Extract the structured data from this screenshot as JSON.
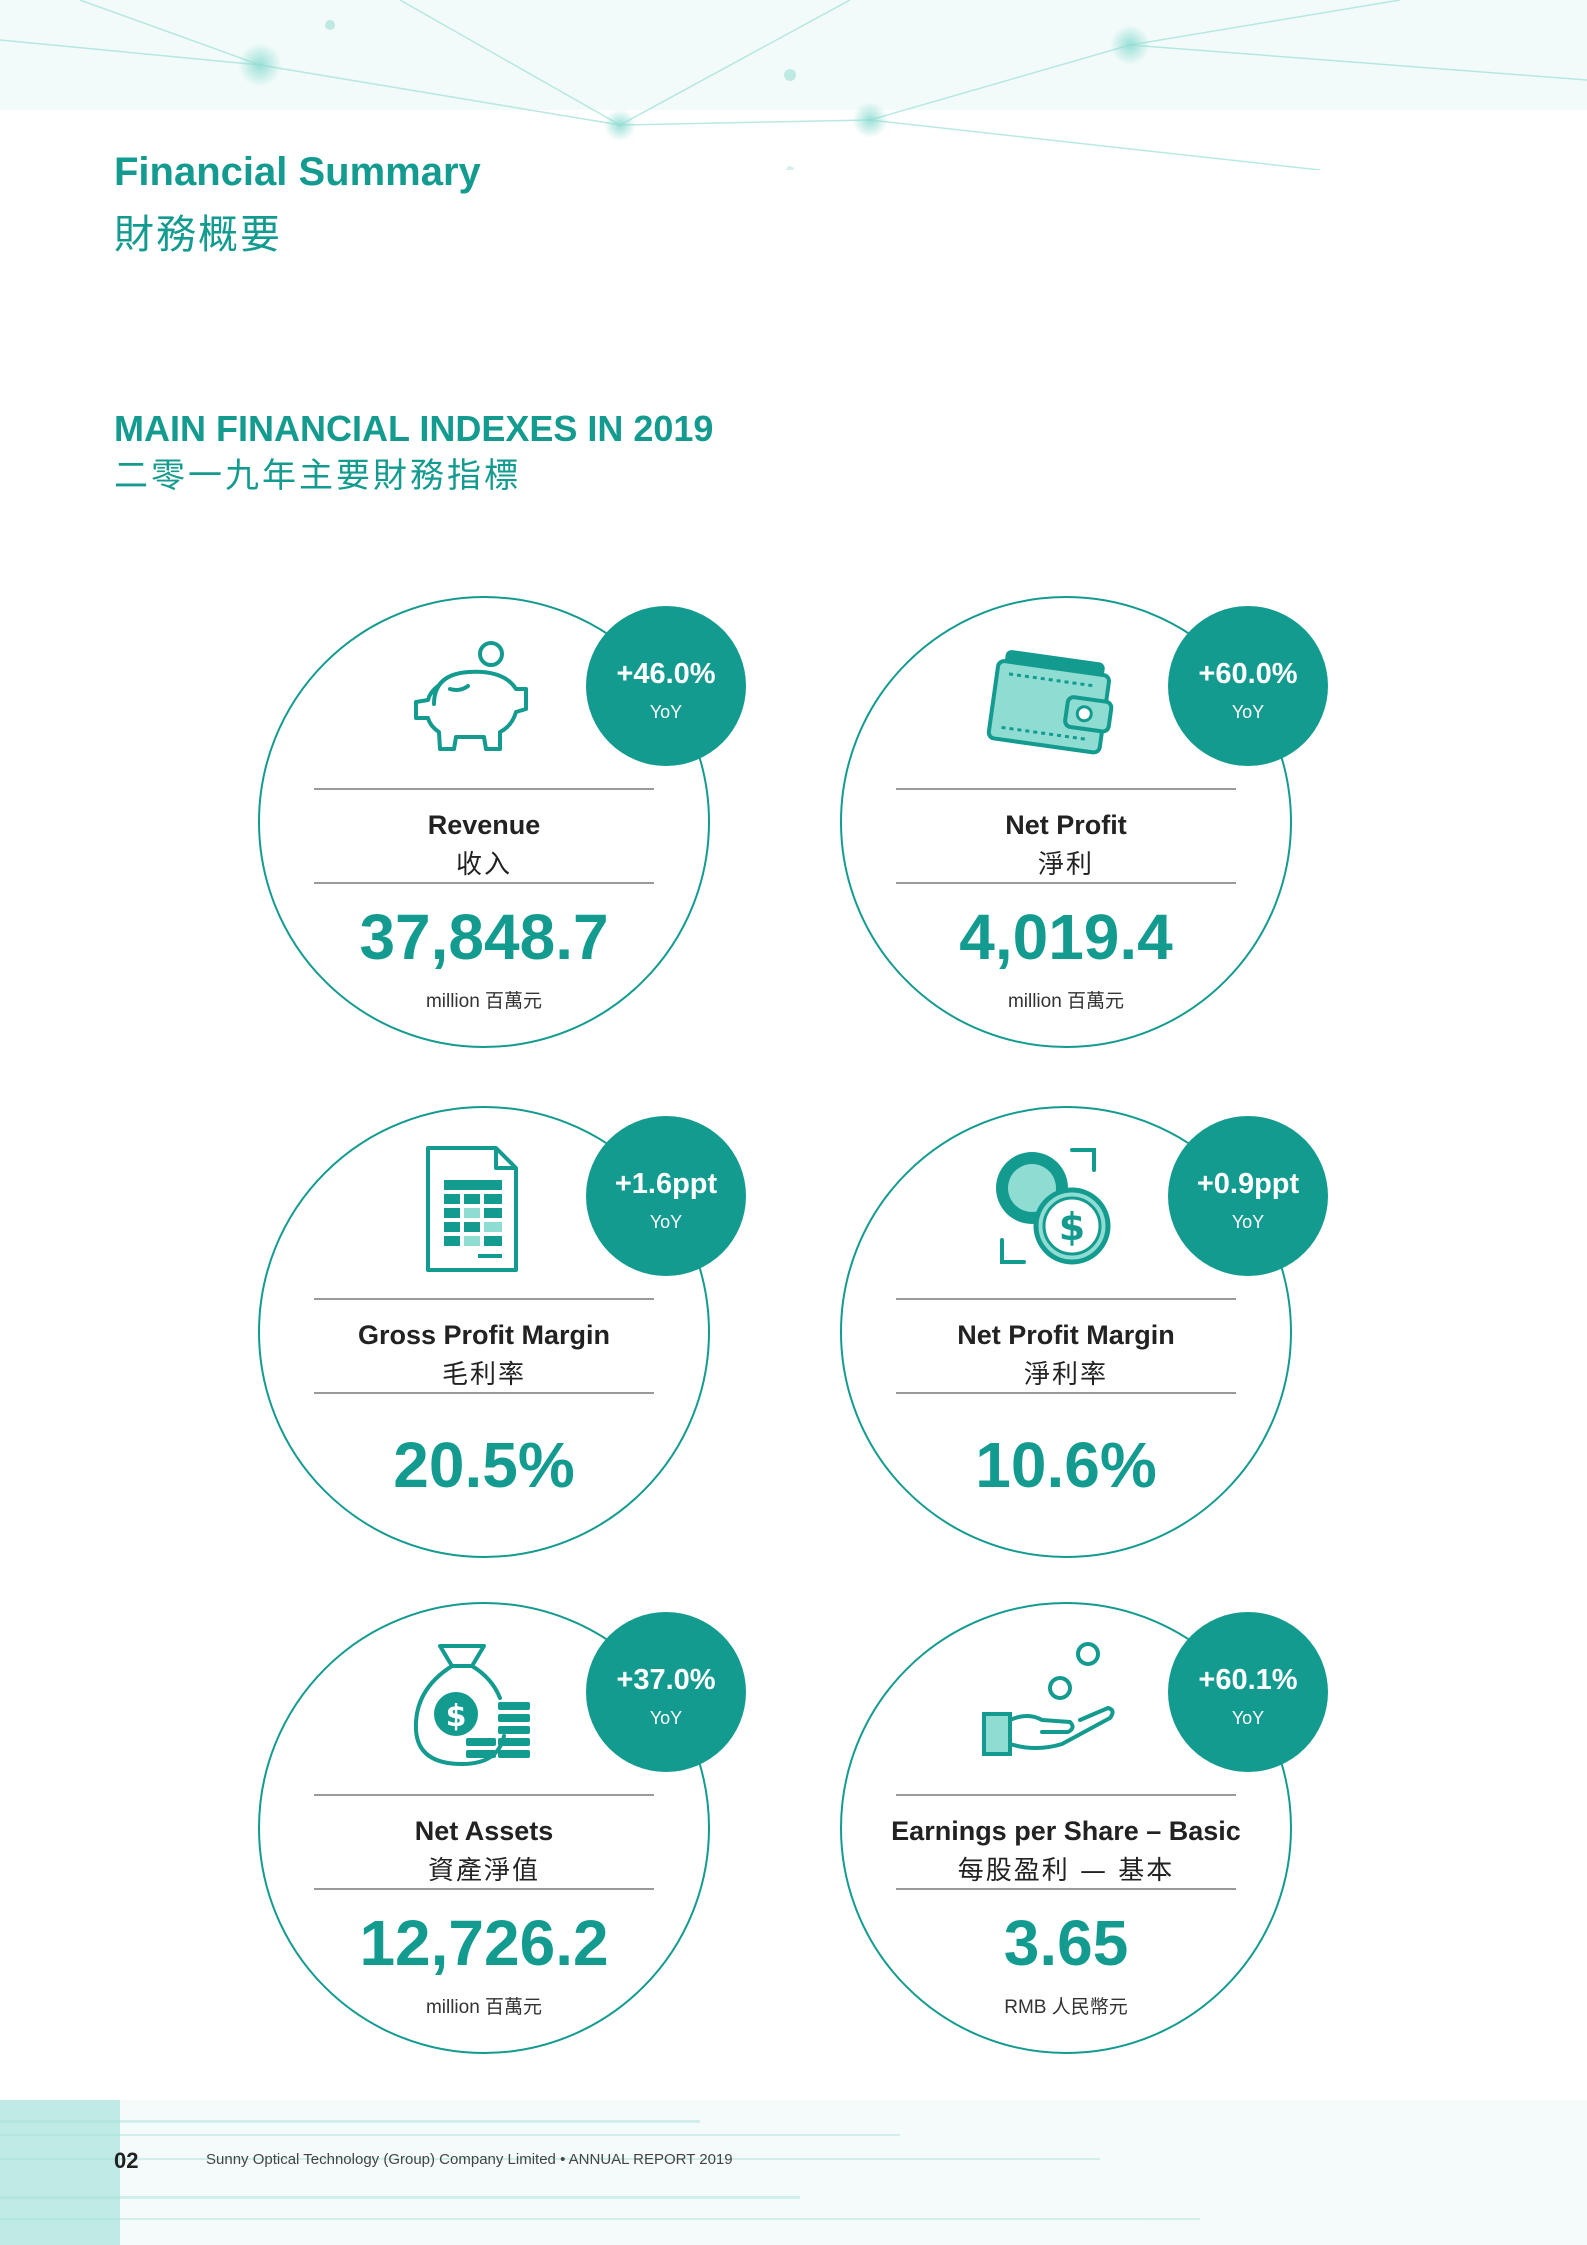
{
  "header": {
    "title_en": "Financial Summary",
    "title_zh": "財務概要"
  },
  "section": {
    "title_en": "MAIN FINANCIAL INDEXES IN 2019",
    "title_zh": "二零一九年主要財務指標"
  },
  "theme": {
    "accent": "#149b90",
    "accent_light": "#8fdcd2",
    "rule": "#9a9a9a"
  },
  "cards": [
    {
      "icon": "piggy-bank-icon",
      "badge": "+46.0%",
      "badge_sub": "YoY",
      "label_en": "Revenue",
      "label_zh": "收入",
      "value": "37,848.7",
      "unit": "million 百萬元"
    },
    {
      "icon": "wallet-icon",
      "badge": "+60.0%",
      "badge_sub": "YoY",
      "label_en": "Net Profit",
      "label_zh": "淨利",
      "value": "4,019.4",
      "unit": "million 百萬元"
    },
    {
      "icon": "spreadsheet-icon",
      "badge": "+1.6ppt",
      "badge_sub": "YoY",
      "label_en": "Gross Profit Margin",
      "label_zh": "毛利率",
      "value": "20.5%",
      "unit": ""
    },
    {
      "icon": "coin-exchange-icon",
      "badge": "+0.9ppt",
      "badge_sub": "YoY",
      "label_en": "Net Profit Margin",
      "label_zh": "淨利率",
      "value": "10.6%",
      "unit": ""
    },
    {
      "icon": "money-bag-icon",
      "badge": "+37.0%",
      "badge_sub": "YoY",
      "label_en": "Net Assets",
      "label_zh": "資產淨值",
      "value": "12,726.2",
      "unit": "million 百萬元"
    },
    {
      "icon": "hand-coins-icon",
      "badge": "+60.1%",
      "badge_sub": "YoY",
      "label_en": "Earnings per Share – Basic",
      "label_zh": "每股盈利 — 基本",
      "value": "3.65",
      "unit": "RMB 人民幣元"
    }
  ],
  "footer": {
    "page": "02",
    "text": "Sunny Optical Technology (Group) Company Limited • ANNUAL REPORT 2019"
  }
}
